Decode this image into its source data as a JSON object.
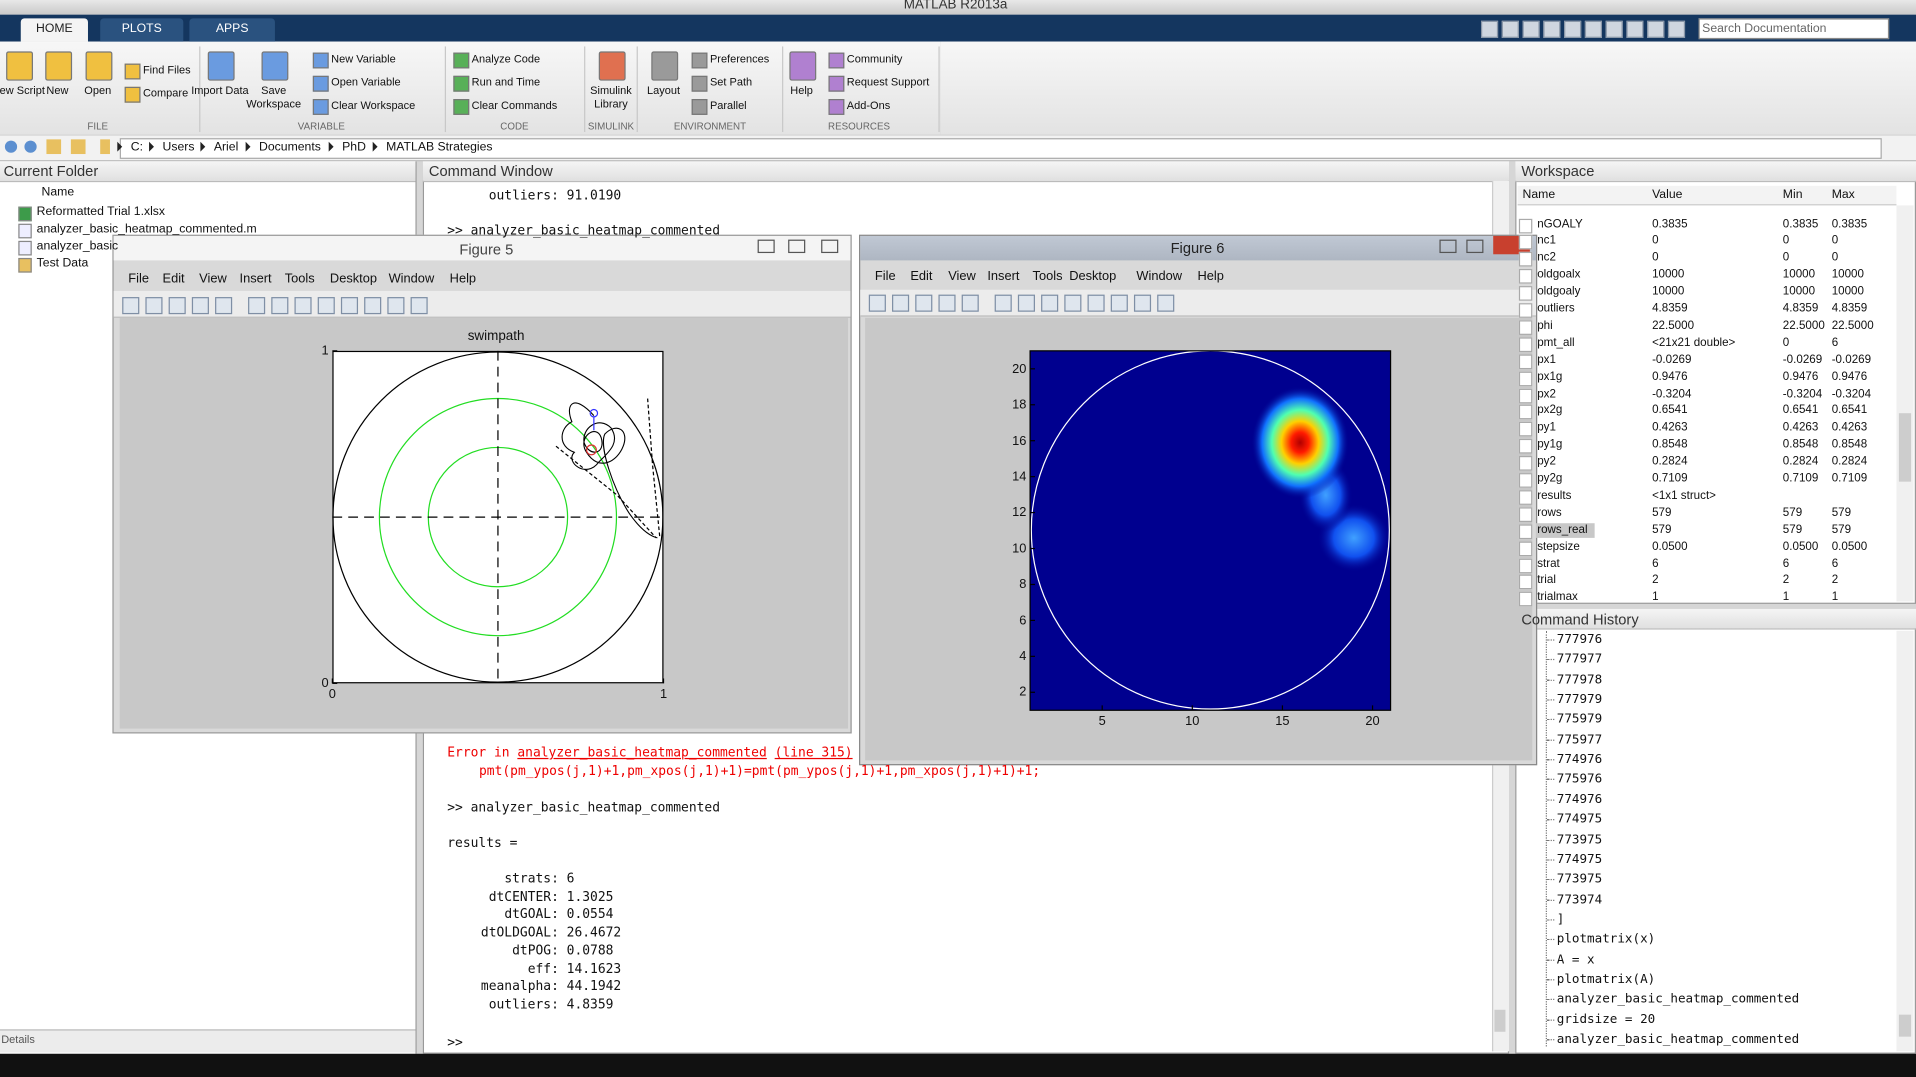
{
  "window_title": "MATLAB R2013a",
  "tabs": [
    "HOME",
    "PLOTS",
    "APPS"
  ],
  "search_placeholder": "Search Documentation",
  "ribbon": [
    {
      "label": "FILE",
      "buttons": [
        "New Script",
        "New",
        "Open",
        "Find Files",
        "Compare"
      ]
    },
    {
      "label": "VARIABLE",
      "buttons": [
        "Import Data",
        "Save Workspace",
        "New Variable",
        "Open Variable",
        "Clear Workspace"
      ]
    },
    {
      "label": "CODE",
      "buttons": [
        "Analyze Code",
        "Run and Time",
        "Clear Commands"
      ]
    },
    {
      "label": "SIMULINK",
      "buttons": [
        "Simulink Library"
      ]
    },
    {
      "label": "ENVIRONMENT",
      "buttons": [
        "Layout",
        "Preferences",
        "Set Path",
        "Parallel"
      ]
    },
    {
      "label": "RESOURCES",
      "buttons": [
        "Help",
        "Community",
        "Request Support",
        "Add-Ons"
      ]
    }
  ],
  "path": [
    "C:",
    "Users",
    "Ariel",
    "Documents",
    "PhD",
    "MATLAB Strategies"
  ],
  "current_folder": {
    "title": "Current Folder",
    "column": "Name",
    "items": [
      "Reformatted Trial 1.xlsx",
      "analyzer_basic_heatmap_commented.m",
      "analyzer_basic",
      "Test Data"
    ],
    "details": "Details"
  },
  "command_window": {
    "title": "Command Window",
    "top_lines": [
      "outliers: 91.0190",
      ">> analyzer_basic_heatmap_commented"
    ],
    "error": {
      "prefix": "Error in ",
      "link": "analyzer_basic_heatmap_commented",
      "line": "(line 315)",
      "code": "pmt(pm_ypos(j,1)+1,pm_xpos(j,1)+1)=pmt(pm_ypos(j,1)+1,pm_xpos(j,1)+1)+1;"
    },
    "command": ">> analyzer_basic_heatmap_commented",
    "results_header": "results =",
    "results": [
      "strats: 6",
      "dtCENTER: 1.3025",
      "dtGOAL: 0.0554",
      "dtOLDGOAL: 26.4672",
      "dtPOG: 0.0788",
      "eff: 14.1623",
      "meanalpha: 44.1942",
      "outliers: 4.8359"
    ],
    "prompt": ">>"
  },
  "workspace": {
    "title": "Workspace",
    "columns": [
      "Name",
      "Value",
      "Min",
      "Max"
    ],
    "rows": [
      [
        "nGOALY",
        "0.3835",
        "0.3835",
        "0.3835"
      ],
      [
        "nc1",
        "0",
        "0",
        "0"
      ],
      [
        "nc2",
        "0",
        "0",
        "0"
      ],
      [
        "oldgoalx",
        "10000",
        "10000",
        "10000"
      ],
      [
        "oldgoaly",
        "10000",
        "10000",
        "10000"
      ],
      [
        "outliers",
        "4.8359",
        "4.8359",
        "4.8359"
      ],
      [
        "phi",
        "22.5000",
        "22.5000",
        "22.5000"
      ],
      [
        "pmt_all",
        "<21x21 double>",
        "0",
        "6"
      ],
      [
        "px1",
        "-0.0269",
        "-0.0269",
        "-0.0269"
      ],
      [
        "px1g",
        "0.9476",
        "0.9476",
        "0.9476"
      ],
      [
        "px2",
        "-0.3204",
        "-0.3204",
        "-0.3204"
      ],
      [
        "px2g",
        "0.6541",
        "0.6541",
        "0.6541"
      ],
      [
        "py1",
        "0.4263",
        "0.4263",
        "0.4263"
      ],
      [
        "py1g",
        "0.8548",
        "0.8548",
        "0.8548"
      ],
      [
        "py2",
        "0.2824",
        "0.2824",
        "0.2824"
      ],
      [
        "py2g",
        "0.7109",
        "0.7109",
        "0.7109"
      ],
      [
        "results",
        "<1x1 struct>"
      ],
      [
        "rows",
        "579",
        "579",
        "579"
      ],
      [
        "rows_real",
        "579",
        "579",
        "579"
      ],
      [
        "stepsize",
        "0.0500",
        "0.0500",
        "0.0500"
      ],
      [
        "strat",
        "6",
        "6",
        "6"
      ],
      [
        "trial",
        "2",
        "2",
        "2"
      ],
      [
        "trialmax",
        "1",
        "1",
        "1"
      ]
    ]
  },
  "command_history": {
    "title": "Command History",
    "lines": [
      "777976",
      "777977",
      "777978",
      "777979",
      "775979",
      "775977",
      "774976",
      "775976",
      "774976",
      "774975",
      "773975",
      "774975",
      "773975",
      "773974",
      "]",
      "plotmatrix(x)",
      "A = x",
      "plotmatrix(A)",
      "analyzer_basic_heatmap_commented",
      "gridsize = 20",
      "analyzer_basic_heatmap_commented"
    ]
  },
  "figure_menu": [
    "File",
    "Edit",
    "View",
    "Insert",
    "Tools",
    "Desktop",
    "Window",
    "Help"
  ],
  "figure5": {
    "title": "Figure 5",
    "plot_title": "swimpath",
    "xlim": [
      0,
      1
    ],
    "ylim": [
      0,
      1
    ],
    "xticks": [
      0,
      1
    ],
    "yticks": [
      0,
      1
    ]
  },
  "figure6": {
    "title": "Figure 6",
    "xlim": [
      1,
      21
    ],
    "ylim": [
      1,
      21
    ],
    "xticks": [
      5,
      10,
      15,
      20
    ],
    "yticks": [
      2,
      4,
      6,
      8,
      10,
      12,
      14,
      16,
      18,
      20
    ]
  }
}
